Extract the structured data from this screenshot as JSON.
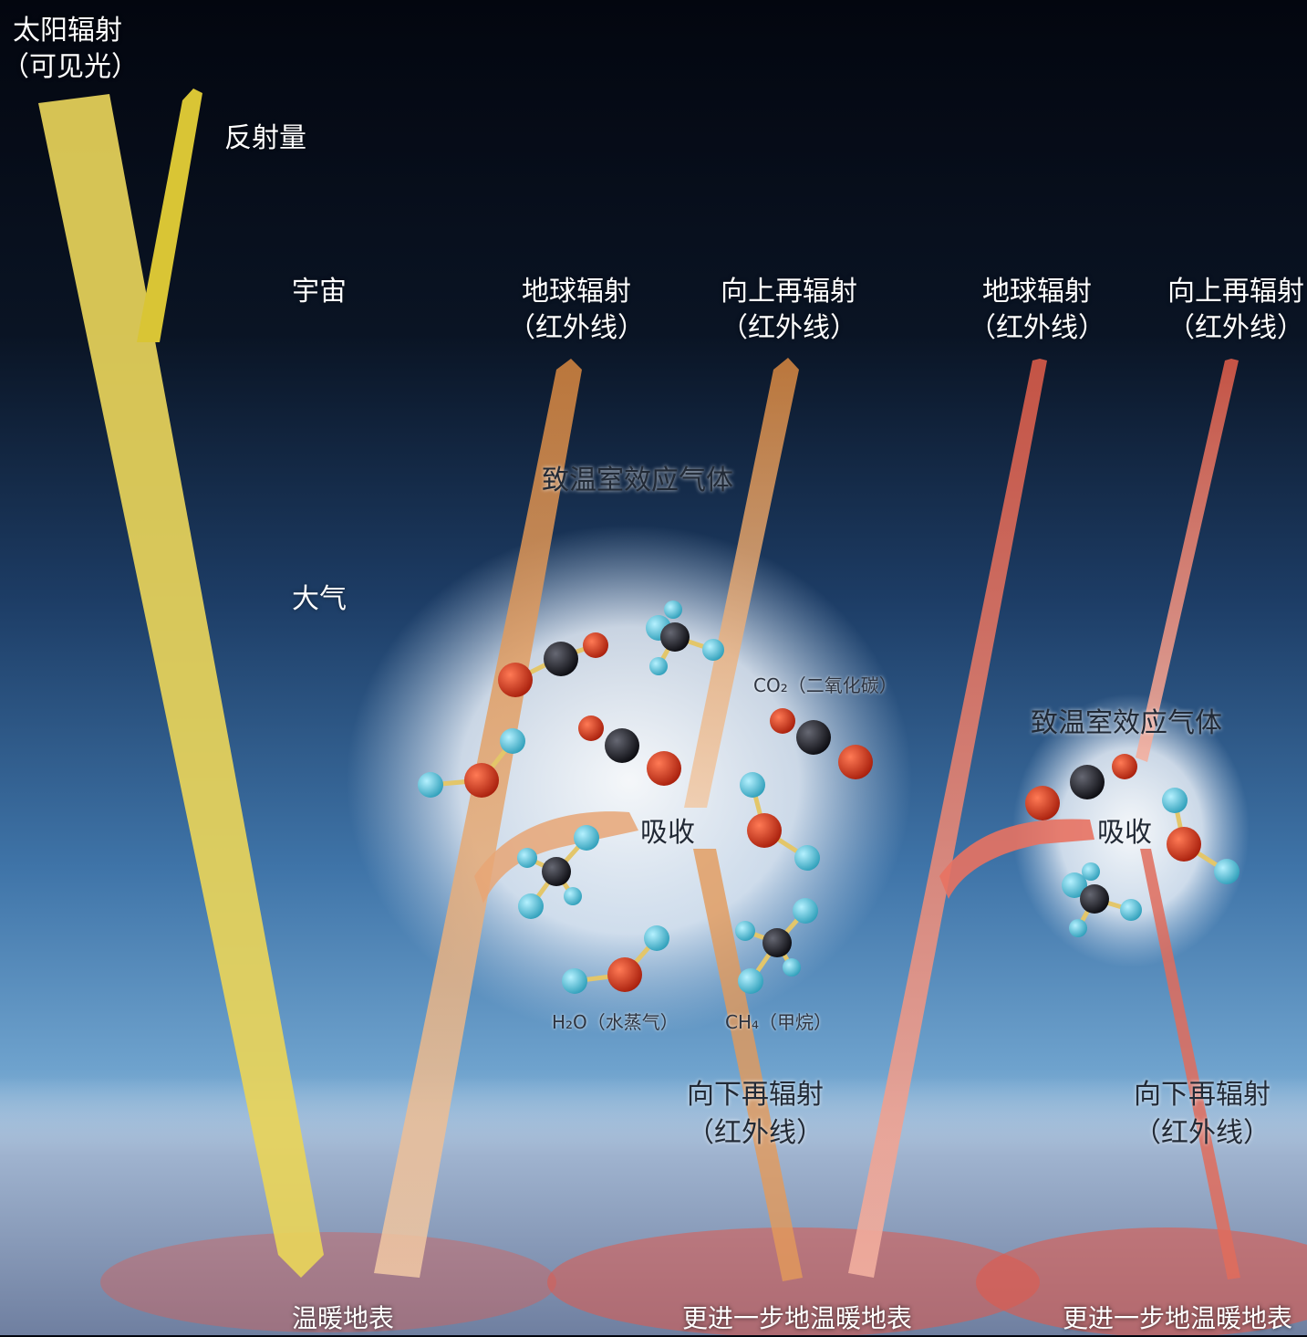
{
  "colors": {
    "sunlight": "#e8d45a",
    "reflected": "#d9c535",
    "earth_ir": "#e0a36a",
    "earth_ir_strong": "#e0685a",
    "oxygen": "#d23a1e",
    "carbon": "#1c1c24",
    "hydrogen": "#4fc0d8"
  },
  "labels": {
    "solar_line1": "太阳辐射",
    "solar_line2": "（可见光）",
    "reflected": "反射量",
    "space": "宇宙",
    "atmosphere": "大气",
    "earth_rad_a_line1": "地球辐射",
    "earth_rad_a_line2": "（红外线）",
    "up_rerad_a_line1": "向上再辐射",
    "up_rerad_a_line2": "（红外线）",
    "earth_rad_b_line1": "地球辐射",
    "earth_rad_b_line2": "（红外线）",
    "up_rerad_b_line1": "向上再辐射",
    "up_rerad_b_line2": "（红外线）",
    "ghg_a": "致温室效应气体",
    "ghg_b": "致温室效应气体",
    "absorb_a": "吸收",
    "absorb_b": "吸收",
    "co2": "CO₂（二氧化碳）",
    "h2o": "H₂O（水蒸气）",
    "ch4": "CH₄（甲烷）",
    "down_rerad_a_line1": "向下再辐射",
    "down_rerad_a_line2": "（红外线）",
    "down_rerad_b_line1": "向下再辐射",
    "down_rerad_b_line2": "（红外线）",
    "surface_a": "温暖地表",
    "surface_b": "更进一步地温暖地表",
    "surface_c": "更进一步地温暖地表"
  }
}
